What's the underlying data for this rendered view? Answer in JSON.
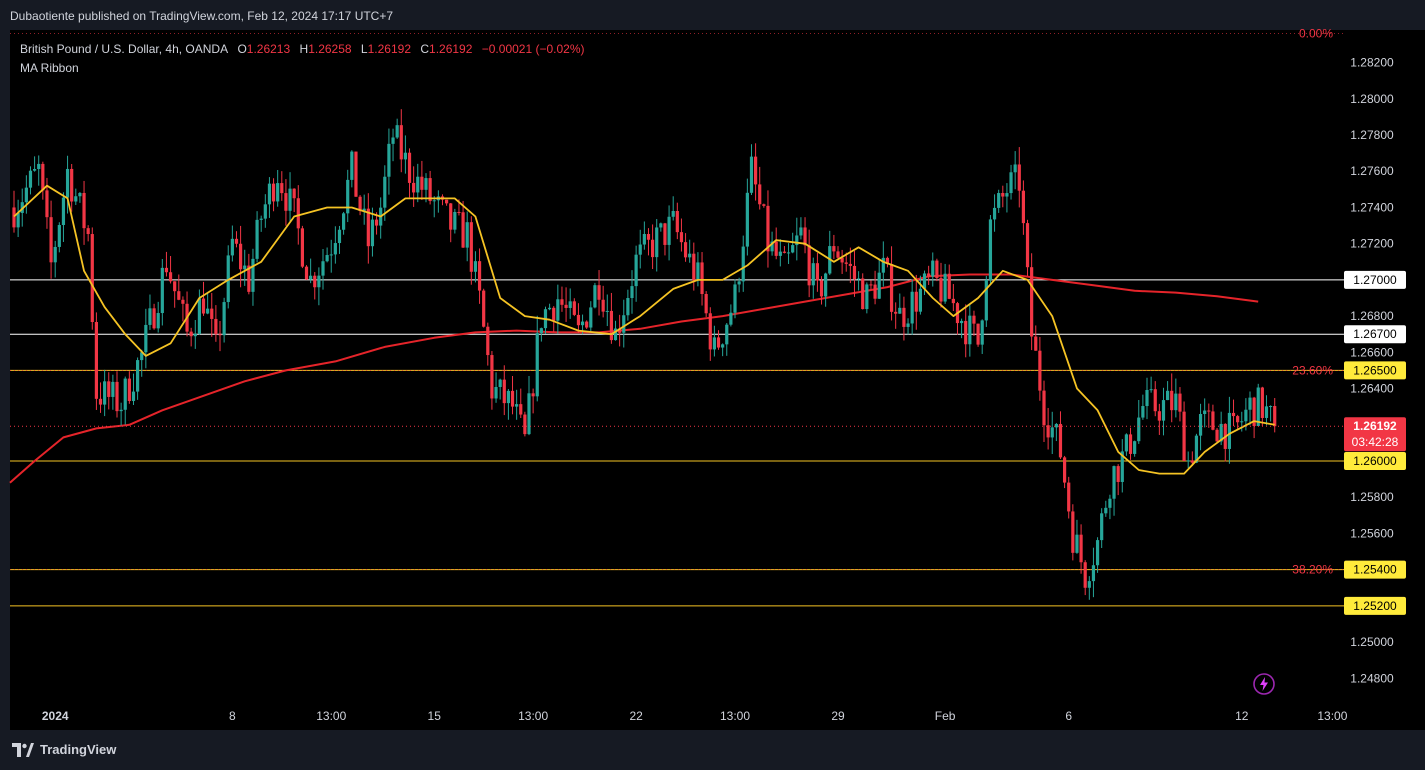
{
  "header": {
    "publisher": "Dubaotiente published on TradingView.com, Feb 12, 2024 17:17 UTC+7"
  },
  "legend": {
    "symbol": "British Pound / U.S. Dollar, 4h, OANDA",
    "o_label": "O",
    "o_value": "1.26213",
    "h_label": "H",
    "h_value": "1.26258",
    "l_label": "L",
    "l_value": "1.26192",
    "c_label": "C",
    "c_value": "1.26192",
    "change": "−0.00021 (−0.02%)",
    "indicator": "MA Ribbon"
  },
  "footer": {
    "brand": "TradingView"
  },
  "colors": {
    "up": "#26a69a",
    "down": "#f23645",
    "ma_fast": "#f5c324",
    "ma_slow": "#e5242a",
    "hline": "#ffffff",
    "fib": "#f5c324",
    "fib_text": "#f23645"
  },
  "chart_data": {
    "type": "candlestick",
    "ylim": [
      1.2468,
      1.2838
    ],
    "y_ticks": [
      "1.24800",
      "1.25000",
      "1.25200",
      "1.25400",
      "1.25600",
      "1.25800",
      "1.26000",
      "1.26200",
      "1.26400",
      "1.26600",
      "1.26800",
      "1.27000",
      "1.27200",
      "1.27400",
      "1.27600",
      "1.27800",
      "1.28000",
      "1.28200"
    ],
    "x_ticks": [
      {
        "label": "2024",
        "i": 10,
        "bold": true
      },
      {
        "label": "8",
        "i": 53
      },
      {
        "label": "13:00",
        "i": 77
      },
      {
        "label": "15",
        "i": 102
      },
      {
        "label": "13:00",
        "i": 126
      },
      {
        "label": "22",
        "i": 151
      },
      {
        "label": "13:00",
        "i": 175
      },
      {
        "label": "29",
        "i": 200
      },
      {
        "label": "Feb",
        "i": 226
      },
      {
        "label": "6",
        "i": 256
      },
      {
        "label": "12",
        "i": 298
      },
      {
        "label": "13:00",
        "i": 320
      }
    ],
    "levels": [
      {
        "price": 1.27,
        "label": "1.27000",
        "kind": "white"
      },
      {
        "price": 1.267,
        "label": "1.26700",
        "kind": "white"
      },
      {
        "price": 1.265,
        "label": "1.26500",
        "kind": "yellow"
      },
      {
        "price": 1.26,
        "label": "1.26000",
        "kind": "yellow"
      },
      {
        "price": 1.254,
        "label": "1.25400",
        "kind": "yellow"
      },
      {
        "price": 1.252,
        "label": "1.25200",
        "kind": "yellow"
      }
    ],
    "fib": [
      {
        "price": 1.2836,
        "label": "0.00%"
      },
      {
        "price": 1.265,
        "label": "23.60%"
      },
      {
        "price": 1.254,
        "label": "38.20%"
      }
    ],
    "last_price": {
      "price": 1.26192,
      "label": "1.26192",
      "countdown": "03:42:28"
    },
    "waypoints": [
      [
        0,
        1.274
      ],
      [
        6,
        1.276
      ],
      [
        9,
        1.2708
      ],
      [
        13,
        1.276
      ],
      [
        18,
        1.2725
      ],
      [
        20,
        1.2638
      ],
      [
        26,
        1.2632
      ],
      [
        31,
        1.2658
      ],
      [
        37,
        1.271
      ],
      [
        42,
        1.267
      ],
      [
        46,
        1.269
      ],
      [
        49,
        1.266
      ],
      [
        53,
        1.272
      ],
      [
        57,
        1.27
      ],
      [
        60,
        1.2735
      ],
      [
        64,
        1.276
      ],
      [
        68,
        1.2735
      ],
      [
        72,
        1.27
      ],
      [
        77,
        1.272
      ],
      [
        82,
        1.276
      ],
      [
        86,
        1.272
      ],
      [
        89,
        1.274
      ],
      [
        92,
        1.278
      ],
      [
        96,
        1.276
      ],
      [
        101,
        1.2745
      ],
      [
        106,
        1.273
      ],
      [
        110,
        1.2725
      ],
      [
        113,
        1.2688
      ],
      [
        116,
        1.264
      ],
      [
        121,
        1.263
      ],
      [
        124,
        1.261
      ],
      [
        128,
        1.268
      ],
      [
        132,
        1.269
      ],
      [
        137,
        1.267
      ],
      [
        142,
        1.27
      ],
      [
        146,
        1.267
      ],
      [
        151,
        1.271
      ],
      [
        155,
        1.272
      ],
      [
        160,
        1.273
      ],
      [
        166,
        1.27
      ],
      [
        170,
        1.266
      ],
      [
        175,
        1.269
      ],
      [
        179,
        1.276
      ],
      [
        183,
        1.272
      ],
      [
        187,
        1.2705
      ],
      [
        191,
        1.2725
      ],
      [
        195,
        1.269
      ],
      [
        199,
        1.272
      ],
      [
        203,
        1.2705
      ],
      [
        207,
        1.269
      ],
      [
        211,
        1.2705
      ],
      [
        215,
        1.268
      ],
      [
        219,
        1.269
      ],
      [
        223,
        1.27
      ],
      [
        227,
        1.269
      ],
      [
        231,
        1.2675
      ],
      [
        234,
        1.2665
      ],
      [
        237,
        1.273
      ],
      [
        241,
        1.275
      ],
      [
        244,
        1.2755
      ],
      [
        247,
        1.267
      ],
      [
        250,
        1.263
      ],
      [
        254,
        1.2605
      ],
      [
        257,
        1.256
      ],
      [
        260,
        1.2538
      ],
      [
        263,
        1.2555
      ],
      [
        266,
        1.259
      ],
      [
        270,
        1.2605
      ],
      [
        274,
        1.263
      ],
      [
        278,
        1.263
      ],
      [
        282,
        1.2632
      ],
      [
        285,
        1.26
      ],
      [
        288,
        1.262
      ],
      [
        292,
        1.262
      ],
      [
        296,
        1.2615
      ],
      [
        300,
        1.263
      ],
      [
        303,
        1.263
      ],
      [
        306,
        1.2619
      ]
    ],
    "ma_fast": [
      [
        0,
        1.2735
      ],
      [
        8,
        1.2752
      ],
      [
        13,
        1.2745
      ],
      [
        17,
        1.2705
      ],
      [
        22,
        1.2685
      ],
      [
        27,
        1.267
      ],
      [
        32,
        1.2658
      ],
      [
        38,
        1.2665
      ],
      [
        45,
        1.269
      ],
      [
        52,
        1.27
      ],
      [
        60,
        1.271
      ],
      [
        68,
        1.2735
      ],
      [
        76,
        1.274
      ],
      [
        82,
        1.274
      ],
      [
        89,
        1.2735
      ],
      [
        95,
        1.2745
      ],
      [
        101,
        1.2745
      ],
      [
        107,
        1.2745
      ],
      [
        112,
        1.2735
      ],
      [
        118,
        1.269
      ],
      [
        124,
        1.268
      ],
      [
        130,
        1.2678
      ],
      [
        137,
        1.2672
      ],
      [
        145,
        1.267
      ],
      [
        152,
        1.268
      ],
      [
        160,
        1.2695
      ],
      [
        166,
        1.27
      ],
      [
        172,
        1.27
      ],
      [
        178,
        1.2708
      ],
      [
        185,
        1.2722
      ],
      [
        192,
        1.272
      ],
      [
        199,
        1.271
      ],
      [
        205,
        1.2718
      ],
      [
        211,
        1.271
      ],
      [
        217,
        1.2705
      ],
      [
        223,
        1.269
      ],
      [
        228,
        1.268
      ],
      [
        234,
        1.269
      ],
      [
        240,
        1.2705
      ],
      [
        246,
        1.27
      ],
      [
        252,
        1.268
      ],
      [
        258,
        1.264
      ],
      [
        263,
        1.2628
      ],
      [
        268,
        1.2605
      ],
      [
        273,
        1.2595
      ],
      [
        278,
        1.2593
      ],
      [
        284,
        1.2593
      ],
      [
        289,
        1.2605
      ],
      [
        295,
        1.2615
      ],
      [
        301,
        1.2622
      ],
      [
        306,
        1.262
      ]
    ],
    "ma_slow": [
      [
        -1,
        1.2588
      ],
      [
        5,
        1.26
      ],
      [
        12,
        1.2613
      ],
      [
        20,
        1.2618
      ],
      [
        28,
        1.262
      ],
      [
        36,
        1.2628
      ],
      [
        46,
        1.2636
      ],
      [
        56,
        1.2644
      ],
      [
        66,
        1.265
      ],
      [
        78,
        1.2655
      ],
      [
        90,
        1.2663
      ],
      [
        102,
        1.2668
      ],
      [
        112,
        1.2671
      ],
      [
        122,
        1.2672
      ],
      [
        132,
        1.2671
      ],
      [
        142,
        1.2671
      ],
      [
        152,
        1.2673
      ],
      [
        162,
        1.2677
      ],
      [
        172,
        1.268
      ],
      [
        182,
        1.2684
      ],
      [
        192,
        1.2688
      ],
      [
        202,
        1.2692
      ],
      [
        212,
        1.2696
      ],
      [
        222,
        1.2702
      ],
      [
        232,
        1.2703
      ],
      [
        242,
        1.2703
      ],
      [
        252,
        1.27
      ],
      [
        262,
        1.2697
      ],
      [
        272,
        1.2694
      ],
      [
        282,
        1.2693
      ],
      [
        292,
        1.2691
      ],
      [
        302,
        1.2688
      ]
    ]
  }
}
